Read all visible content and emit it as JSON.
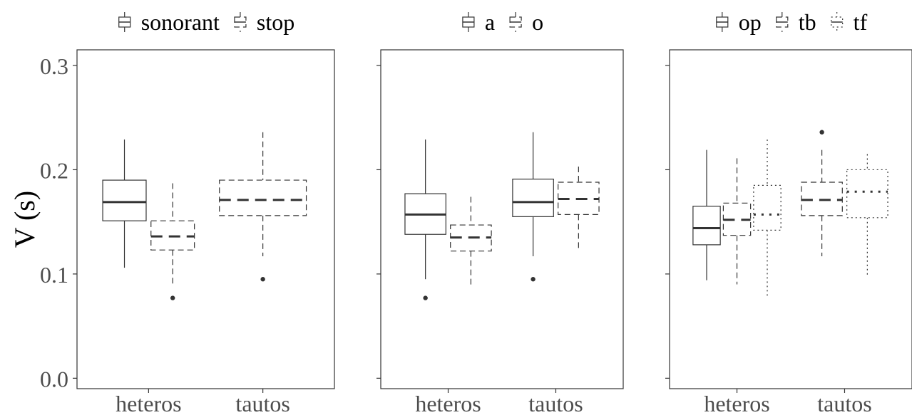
{
  "colors": {
    "box": "#333333",
    "axis": "#333333",
    "text": "#4d4d4d"
  },
  "chart_data": {
    "type": "boxplot",
    "ylabel": "V (s)",
    "ylim": [
      -0.01,
      0.315
    ],
    "yticks": [
      "0.0",
      "0.1",
      "0.2",
      "0.3"
    ],
    "ytick_values": [
      0.0,
      0.1,
      0.2,
      0.3
    ],
    "grid": false,
    "legend_position": "top",
    "panels": [
      {
        "id": "manner",
        "categories": [
          "heteros",
          "tautos"
        ],
        "series": [
          {
            "name": "sonorant",
            "linetype": "solid",
            "stats": [
              {
                "category": "heteros",
                "min": 0.106,
                "q1": 0.151,
                "median": 0.169,
                "q3": 0.19,
                "max": 0.229,
                "outliers": []
              },
              null
            ]
          },
          {
            "name": "stop",
            "linetype": "dashed",
            "stats": [
              {
                "category": "heteros",
                "min": 0.088,
                "q1": 0.123,
                "median": 0.136,
                "q3": 0.151,
                "max": 0.187,
                "outliers": [
                  0.077
                ]
              },
              {
                "category": "tautos",
                "min": 0.117,
                "q1": 0.156,
                "median": 0.171,
                "q3": 0.19,
                "max": 0.236,
                "outliers": [
                  0.095
                ]
              }
            ]
          }
        ]
      },
      {
        "id": "vowel",
        "categories": [
          "heteros",
          "tautos"
        ],
        "series": [
          {
            "name": "a",
            "linetype": "solid",
            "stats": [
              {
                "category": "heteros",
                "min": 0.095,
                "q1": 0.138,
                "median": 0.157,
                "q3": 0.177,
                "max": 0.229,
                "outliers": [
                  0.077
                ]
              },
              {
                "category": "tautos",
                "min": 0.117,
                "q1": 0.155,
                "median": 0.169,
                "q3": 0.191,
                "max": 0.236,
                "outliers": [
                  0.095
                ]
              }
            ]
          },
          {
            "name": "o",
            "linetype": "dashed",
            "stats": [
              {
                "category": "heteros",
                "min": 0.089,
                "q1": 0.122,
                "median": 0.135,
                "q3": 0.147,
                "max": 0.174,
                "outliers": []
              },
              {
                "category": "tautos",
                "min": 0.123,
                "q1": 0.157,
                "median": 0.172,
                "q3": 0.188,
                "max": 0.203,
                "outliers": []
              }
            ]
          }
        ]
      },
      {
        "id": "place",
        "categories": [
          "heteros",
          "tautos"
        ],
        "series": [
          {
            "name": "op",
            "linetype": "solid",
            "stats": [
              {
                "category": "heteros",
                "min": 0.094,
                "q1": 0.128,
                "median": 0.144,
                "q3": 0.165,
                "max": 0.219,
                "outliers": []
              },
              null
            ]
          },
          {
            "name": "tb",
            "linetype": "dashed",
            "stats": [
              {
                "category": "heteros",
                "min": 0.09,
                "q1": 0.137,
                "median": 0.152,
                "q3": 0.168,
                "max": 0.211,
                "outliers": []
              },
              {
                "category": "tautos",
                "min": 0.117,
                "q1": 0.156,
                "median": 0.171,
                "q3": 0.188,
                "max": 0.219,
                "outliers": [
                  0.236
                ]
              }
            ]
          },
          {
            "name": "tf",
            "linetype": "dotted",
            "stats": [
              {
                "category": "heteros",
                "min": 0.078,
                "q1": 0.142,
                "median": 0.157,
                "q3": 0.185,
                "max": 0.229,
                "outliers": []
              },
              {
                "category": "tautos",
                "min": 0.097,
                "q1": 0.154,
                "median": 0.179,
                "q3": 0.2,
                "max": 0.215,
                "outliers": []
              }
            ]
          }
        ]
      }
    ]
  }
}
